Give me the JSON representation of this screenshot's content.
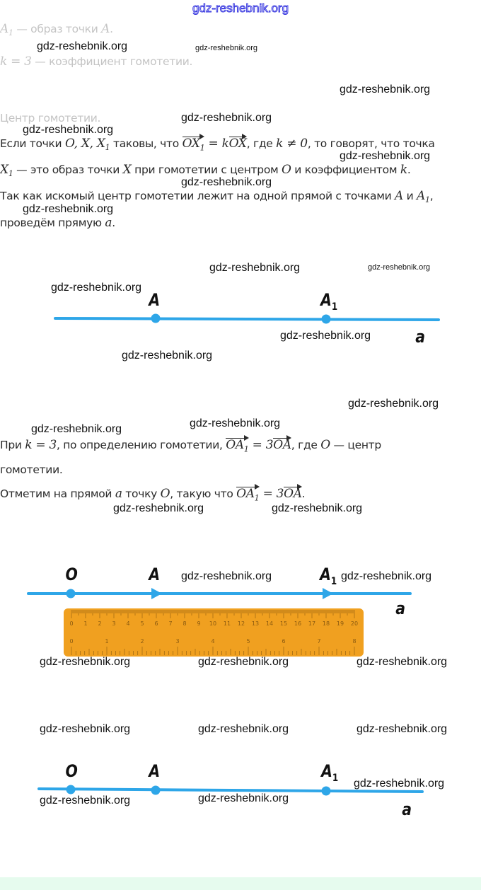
{
  "header_watermark": "gdz-reshebnik.org",
  "lines": {
    "image_prefix": "A",
    "image_sub": "1",
    "image_rest": " — образ точки ",
    "image_pt": "A",
    "image_end": ".",
    "coef_math": "k = 3",
    "coef_rest": " — коэффициент гомотетии.",
    "center": "Центр гомотетии.",
    "def1_a": "Если точки ",
    "def1_pts": "O, X, X",
    "def1_sub": "1",
    "def1_b": " таковы, что ",
    "def1_v1": "OX",
    "def1_v1sub": "1",
    "def1_eq": " = k",
    "def1_v2": "OX",
    "def1_c": ", где ",
    "def1_k": "k ≠ 0",
    "def1_d": ", то говорят, что точка",
    "def2_x": "X",
    "def2_sub": "1",
    "def2_a": " — это образ точки ",
    "def2_X": "X",
    "def2_b": " при гомотетии с центром ",
    "def2_O": "O",
    "def2_c": " и коэффициентом ",
    "def2_k": "k",
    "def2_end": ".",
    "line3_a": "Так как искомый центр гомотетии лежит на одной прямой с точками ",
    "line3_A": "A",
    "line3_and": " и ",
    "line3_A1": "A",
    "line3_sub": "1",
    "line3_end": ",",
    "line4_a": "проведём прямую ",
    "line4_m": "a",
    "line4_end": ".",
    "p2_a": "При ",
    "p2_k": "k = 3",
    "p2_b": ", по определению гомотетии, ",
    "p2_v1": "OA",
    "p2_v1sub": "1",
    "p2_eq": " = 3",
    "p2_v2": "OA",
    "p2_c": ", где ",
    "p2_O": "O",
    "p2_d": " — центр",
    "p3": "гомотетии.",
    "p4_a": "Отметим на прямой ",
    "p4_m": "a",
    "p4_b": " точку ",
    "p4_O": "O",
    "p4_c": ", такую что ",
    "p4_v1": "OA",
    "p4_v1sub": "1",
    "p4_eq": " = 3",
    "p4_v2": "OA",
    "p4_end": "."
  },
  "diagram_labels": {
    "O": "O",
    "A": "A",
    "A1": "A",
    "A1_sub": "1",
    "line": "a"
  },
  "ruler": {
    "cm_labels": [
      "0",
      "1",
      "2",
      "3",
      "4",
      "5",
      "6",
      "7",
      "8",
      "9",
      "10",
      "11",
      "12",
      "13",
      "14",
      "15",
      "16",
      "17",
      "18",
      "19",
      "20"
    ],
    "inch_labels": [
      "0",
      "1",
      "2",
      "3",
      "4",
      "5",
      "6",
      "7",
      "8"
    ]
  },
  "watermark": "gdz-reshebnik.org",
  "colors": {
    "line": "#2ea6e8",
    "ruler": "#f0a020",
    "ruler_ticks": "#8a5a10",
    "text": "#2a2a2a",
    "faded": "#c4c4c4",
    "band": "#e6fbee"
  }
}
